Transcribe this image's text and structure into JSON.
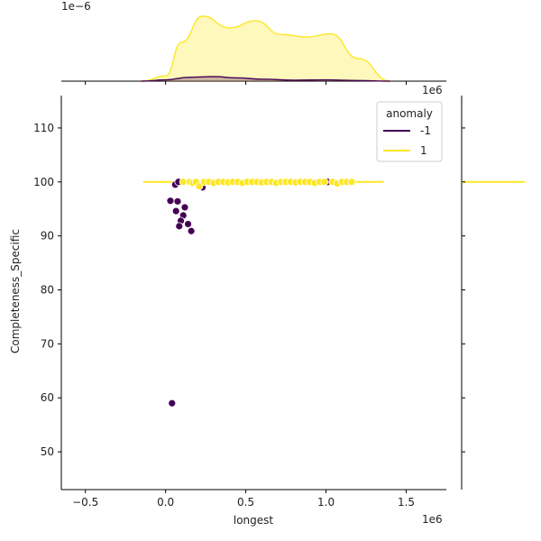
{
  "chart_data": {
    "type": "scatter",
    "subtype": "jointplot with marginal KDE",
    "title": "",
    "xlabel": "longest",
    "ylabel": "Completeness_Specific",
    "x_scale_label": "1e6",
    "x_scale": 1000000,
    "xlim": [
      -650000,
      1750000
    ],
    "ylim": [
      43,
      116
    ],
    "xticks": [
      -500000,
      0,
      500000,
      1000000,
      1500000
    ],
    "xtick_labels": [
      "−0.5",
      "0.0",
      "0.5",
      "1.0",
      "1.5"
    ],
    "yticks": [
      50,
      60,
      70,
      80,
      90,
      100,
      110
    ],
    "ytick_labels": [
      "50",
      "60",
      "70",
      "80",
      "90",
      "100",
      "110"
    ],
    "grid": false,
    "legend": {
      "title": "anomaly",
      "placement": "top-right",
      "entries": [
        {
          "label": "-1",
          "color": "#440154"
        },
        {
          "label": "1",
          "color": "#fde725"
        }
      ]
    },
    "series": [
      {
        "name": "-1",
        "color": "#440154",
        "points": [
          [
            40000,
            59
          ],
          [
            30000,
            96.5
          ],
          [
            75000,
            96.4
          ],
          [
            120000,
            95.3
          ],
          [
            65000,
            94.6
          ],
          [
            110000,
            93.8
          ],
          [
            95000,
            92.8
          ],
          [
            140000,
            92.2
          ],
          [
            85000,
            91.8
          ],
          [
            160000,
            90.9
          ],
          [
            60000,
            99.5
          ],
          [
            80000,
            100
          ],
          [
            230000,
            99
          ],
          [
            1010000,
            100
          ]
        ]
      },
      {
        "name": "1",
        "color": "#fde725",
        "points": [
          [
            110000,
            100
          ],
          [
            150000,
            100
          ],
          [
            170000,
            99.8
          ],
          [
            190000,
            100
          ],
          [
            210000,
            99.2
          ],
          [
            240000,
            100
          ],
          [
            270000,
            100
          ],
          [
            300000,
            99.8
          ],
          [
            330000,
            100
          ],
          [
            360000,
            100
          ],
          [
            390000,
            99.9
          ],
          [
            420000,
            100
          ],
          [
            450000,
            100
          ],
          [
            480000,
            99.8
          ],
          [
            510000,
            100
          ],
          [
            540000,
            100
          ],
          [
            570000,
            100
          ],
          [
            600000,
            99.9
          ],
          [
            630000,
            100
          ],
          [
            660000,
            100
          ],
          [
            690000,
            99.8
          ],
          [
            720000,
            100
          ],
          [
            750000,
            100
          ],
          [
            780000,
            100
          ],
          [
            810000,
            99.9
          ],
          [
            840000,
            100
          ],
          [
            870000,
            100
          ],
          [
            900000,
            100
          ],
          [
            930000,
            99.8
          ],
          [
            960000,
            100
          ],
          [
            990000,
            100
          ],
          [
            1040000,
            100
          ],
          [
            1070000,
            99.7
          ],
          [
            1100000,
            100
          ],
          [
            1130000,
            100
          ],
          [
            1160000,
            100
          ]
        ]
      }
    ],
    "marginal_x": {
      "scale_label": "1e−6",
      "kde_-1": [
        [
          -150000,
          0
        ],
        [
          0,
          0.02
        ],
        [
          150000,
          0.06
        ],
        [
          300000,
          0.07
        ],
        [
          450000,
          0.05
        ],
        [
          600000,
          0.03
        ],
        [
          800000,
          0.015
        ],
        [
          1000000,
          0.02
        ],
        [
          1200000,
          0.01
        ],
        [
          1400000,
          0
        ]
      ],
      "kde_1": [
        [
          -150000,
          0
        ],
        [
          0,
          0.08
        ],
        [
          100000,
          0.6
        ],
        [
          230000,
          1.0
        ],
        [
          400000,
          0.82
        ],
        [
          560000,
          0.93
        ],
        [
          720000,
          0.72
        ],
        [
          880000,
          0.68
        ],
        [
          1030000,
          0.73
        ],
        [
          1200000,
          0.35
        ],
        [
          1400000,
          0
        ]
      ]
    },
    "marginal_y": {
      "kde_1_center": 100
    }
  }
}
